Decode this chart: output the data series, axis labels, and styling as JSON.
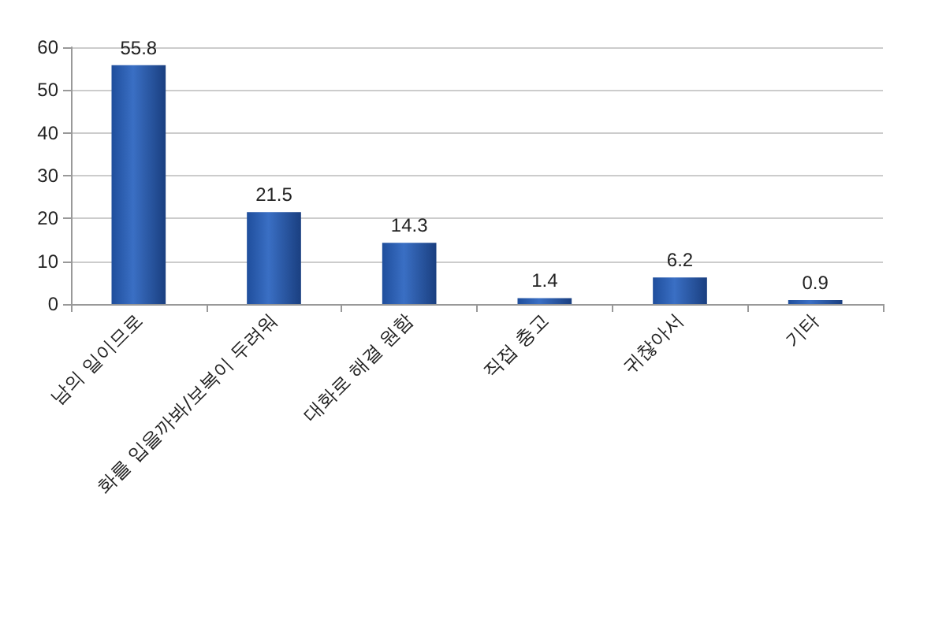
{
  "chart_data": {
    "type": "bar",
    "categories": [
      "남의 일이므로",
      "화를 입을까봐/보복이 두려워",
      "대화로 해결 원함",
      "직접 충고",
      "귀찮아서",
      "기타"
    ],
    "values": [
      55.8,
      21.5,
      14.3,
      1.4,
      6.2,
      0.9
    ],
    "color": "#3a6fc4",
    "ylim": [
      0,
      60
    ],
    "yticks": [
      0,
      10,
      20,
      30,
      40,
      50,
      60
    ],
    "grid": "y",
    "data_labels": true
  }
}
